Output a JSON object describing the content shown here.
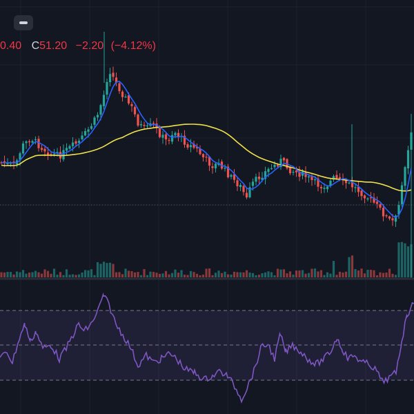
{
  "legend": {
    "low_fragment": "0.40",
    "close_label": "C",
    "close_value": "51.20",
    "change": "−2.20",
    "change_pct": "(−4.12%)"
  },
  "colors": {
    "background": "#131722",
    "up": "#26a69a",
    "down": "#ef5350",
    "ma_fast": "#2962ff",
    "ma_slow": "#f0e24a",
    "rsi_line": "#7e57c2",
    "rsi_band": "#7e57c2"
  },
  "icons": {
    "collapse": "minus-icon"
  },
  "chart_data": {
    "type": "candlestick",
    "candles": [],
    "indicators": [
      "moving-average-fast",
      "moving-average-slow",
      "volume",
      "rsi"
    ],
    "rsi": {
      "bands": [
        70,
        50,
        30
      ],
      "ylim": [
        0,
        100
      ]
    }
  }
}
